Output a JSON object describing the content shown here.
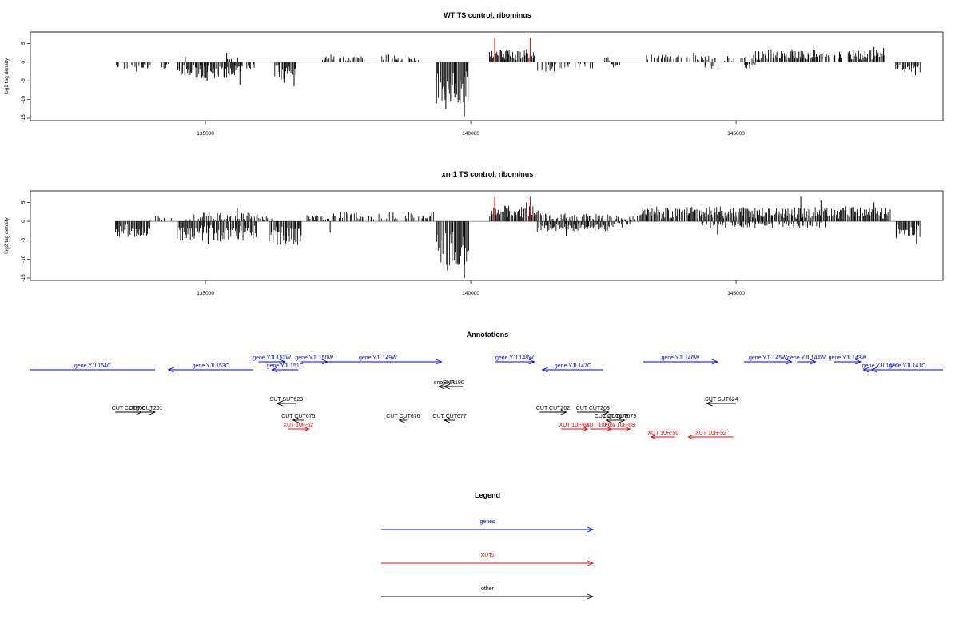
{
  "chart_data": [
    {
      "type": "bar",
      "title": "WT TS control, ribominus",
      "ylabel": "log2 tag density",
      "xlabel": "",
      "xlim": [
        131700,
        148900
      ],
      "ylim": [
        -15,
        7
      ],
      "y_ticks": [
        -15,
        -10,
        -5,
        0,
        5
      ],
      "x_ticks": [
        135000,
        140000,
        145000
      ],
      "x_tick_labels": [
        "135000",
        "140000",
        "145000"
      ],
      "highlight_color": "#ff0000",
      "highlight_positions": [
        140450,
        141120
      ],
      "highlight_heights": [
        6.5,
        6.5
      ],
      "segments": [
        {
          "start": 133300,
          "end": 133950,
          "level": -1.2,
          "seed": 1
        },
        {
          "start": 134100,
          "end": 134350,
          "level": -1.5,
          "seed": 2
        },
        {
          "start": 134450,
          "end": 135700,
          "level": -3.2,
          "seed": 3
        },
        {
          "start": 135750,
          "end": 135950,
          "level": -1.8,
          "seed": 4
        },
        {
          "start": 135400,
          "end": 135600,
          "level": 1.0,
          "seed": 5
        },
        {
          "start": 136300,
          "end": 136700,
          "level": -3.5,
          "seed": 6
        },
        {
          "start": 137200,
          "end": 137450,
          "level": 1.5,
          "seed": 7
        },
        {
          "start": 137500,
          "end": 138000,
          "level": 1.2,
          "seed": 8
        },
        {
          "start": 138300,
          "end": 138700,
          "level": 1.6,
          "seed": 9
        },
        {
          "start": 138800,
          "end": 139000,
          "level": 1.2,
          "seed": 10
        },
        {
          "start": 139350,
          "end": 139950,
          "level": -8.5,
          "seed": 11
        },
        {
          "start": 140350,
          "end": 141200,
          "level": 2.5,
          "seed": 12
        },
        {
          "start": 141250,
          "end": 141600,
          "level": -1.8,
          "seed": 13
        },
        {
          "start": 141650,
          "end": 141900,
          "level": -1.4,
          "seed": 14
        },
        {
          "start": 141950,
          "end": 142300,
          "level": -1.2,
          "seed": 15
        },
        {
          "start": 142450,
          "end": 142600,
          "level": 1.0,
          "seed": 16
        },
        {
          "start": 142650,
          "end": 142800,
          "level": -1.5,
          "seed": 17
        },
        {
          "start": 143300,
          "end": 144600,
          "level": 1.5,
          "seed": 18
        },
        {
          "start": 144400,
          "end": 144700,
          "level": -1.4,
          "seed": 19
        },
        {
          "start": 144750,
          "end": 145200,
          "level": 1.2,
          "seed": 20
        },
        {
          "start": 145100,
          "end": 145400,
          "level": -1.2,
          "seed": 21
        },
        {
          "start": 145300,
          "end": 146500,
          "level": 2.5,
          "seed": 22
        },
        {
          "start": 146500,
          "end": 147000,
          "level": 1.8,
          "seed": 23
        },
        {
          "start": 147100,
          "end": 147800,
          "level": 2.3,
          "seed": 24
        },
        {
          "start": 148000,
          "end": 148450,
          "level": -2.0,
          "seed": 25
        }
      ],
      "spikes": [
        {
          "x": 133700,
          "value": -2.5
        },
        {
          "x": 134620,
          "value": 1.5
        },
        {
          "x": 135030,
          "value": -5.0
        },
        {
          "x": 135400,
          "value": 2.5
        },
        {
          "x": 135650,
          "value": -6.0
        },
        {
          "x": 136670,
          "value": -6.5
        },
        {
          "x": 136480,
          "value": -5.5
        },
        {
          "x": 139530,
          "value": -12.5
        },
        {
          "x": 139700,
          "value": -9.5
        },
        {
          "x": 139800,
          "value": -11.0
        },
        {
          "x": 139880,
          "value": -14.5
        },
        {
          "x": 139620,
          "value": -10.5
        },
        {
          "x": 140700,
          "value": 3.0
        },
        {
          "x": 141050,
          "value": 3.5
        },
        {
          "x": 147600,
          "value": 4.0
        },
        {
          "x": 147780,
          "value": 3.8
        },
        {
          "x": 148380,
          "value": -3.5
        },
        {
          "x": 144200,
          "value": 2.5
        },
        {
          "x": 146950,
          "value": 2.8
        }
      ]
    },
    {
      "type": "bar",
      "title": "xrn1 TS control, ribominus",
      "ylabel": "log2 tag density",
      "xlabel": "",
      "xlim": [
        131700,
        148900
      ],
      "ylim": [
        -15,
        7
      ],
      "y_ticks": [
        -15,
        -10,
        -5,
        0,
        5
      ],
      "x_ticks": [
        135000,
        140000,
        145000
      ],
      "x_tick_labels": [
        "135000",
        "140000",
        "145000"
      ],
      "highlight_color": "#ff0000",
      "highlight_positions": [
        140450,
        141120
      ],
      "highlight_heights": [
        6.5,
        6.5
      ],
      "segments": [
        {
          "start": 133300,
          "end": 133950,
          "level": -3.0,
          "seed": 31
        },
        {
          "start": 133950,
          "end": 134350,
          "level": 1.0,
          "seed": 32
        },
        {
          "start": 134450,
          "end": 135950,
          "level": -3.8,
          "seed": 33
        },
        {
          "start": 134600,
          "end": 136000,
          "level": 1.8,
          "seed": 34
        },
        {
          "start": 136000,
          "end": 136300,
          "level": 1.2,
          "seed": 35
        },
        {
          "start": 136200,
          "end": 136800,
          "level": -4.5,
          "seed": 36
        },
        {
          "start": 136900,
          "end": 137400,
          "level": 1.2,
          "seed": 37
        },
        {
          "start": 137400,
          "end": 139300,
          "level": 1.8,
          "seed": 38
        },
        {
          "start": 139350,
          "end": 139950,
          "level": -9.0,
          "seed": 39
        },
        {
          "start": 140350,
          "end": 141250,
          "level": 3.0,
          "seed": 40
        },
        {
          "start": 141250,
          "end": 142600,
          "level": -2.0,
          "seed": 41
        },
        {
          "start": 141300,
          "end": 142600,
          "level": 1.5,
          "seed": 42
        },
        {
          "start": 142600,
          "end": 143200,
          "level": 1.2,
          "seed": 43
        },
        {
          "start": 142650,
          "end": 143000,
          "level": -1.2,
          "seed": 44
        },
        {
          "start": 143200,
          "end": 147900,
          "level": 2.8,
          "seed": 45
        },
        {
          "start": 144300,
          "end": 146700,
          "level": -1.3,
          "seed": 46
        },
        {
          "start": 148000,
          "end": 148450,
          "level": -3.2,
          "seed": 47
        }
      ],
      "spikes": [
        {
          "x": 133350,
          "value": -4.0
        },
        {
          "x": 135050,
          "value": -6.0
        },
        {
          "x": 135600,
          "value": 3.5
        },
        {
          "x": 136500,
          "value": -6.5
        },
        {
          "x": 136700,
          "value": -5.5
        },
        {
          "x": 139560,
          "value": -13.0
        },
        {
          "x": 139650,
          "value": -10.5
        },
        {
          "x": 139760,
          "value": -11.0
        },
        {
          "x": 139880,
          "value": -15.0
        },
        {
          "x": 140650,
          "value": 4.0
        },
        {
          "x": 141050,
          "value": 5.0
        },
        {
          "x": 141800,
          "value": -4.0
        },
        {
          "x": 146220,
          "value": 6.5
        },
        {
          "x": 146600,
          "value": 5.5
        },
        {
          "x": 147600,
          "value": 5.0
        },
        {
          "x": 148400,
          "value": -6.0
        },
        {
          "x": 144650,
          "value": -3.5
        },
        {
          "x": 137350,
          "value": -3.0
        }
      ]
    }
  ],
  "annotations": {
    "title": "Annotations",
    "xlim": [
      131700,
      148900
    ],
    "items": [
      {
        "label": "gene YJL154C",
        "color": "#0000ff",
        "start": 131700,
        "end": 134050,
        "strand": "-",
        "row": 1,
        "clip": true
      },
      {
        "label": "gene YJL153C",
        "color": "#0000ff",
        "start": 134300,
        "end": 135900,
        "strand": "-",
        "row": 1
      },
      {
        "label": "gene YJL152W",
        "color": "#0000ff",
        "start": 136000,
        "end": 136500,
        "strand": "+",
        "row": 0
      },
      {
        "label": "gene YJL151C",
        "color": "#0000ff",
        "start": 136250,
        "end": 136750,
        "strand": "-",
        "row": 1
      },
      {
        "label": "gene YJL150W",
        "color": "#0000ff",
        "start": 136800,
        "end": 137300,
        "strand": "+",
        "row": 0
      },
      {
        "label": "gene YJL149W",
        "color": "#0000ff",
        "start": 137050,
        "end": 139450,
        "strand": "+",
        "row": 0
      },
      {
        "label": "gene YJL148W",
        "color": "#0000ff",
        "start": 140450,
        "end": 141200,
        "strand": "+",
        "row": 0
      },
      {
        "label": "gene YJL147C",
        "color": "#0000ff",
        "start": 141350,
        "end": 142500,
        "strand": "-",
        "row": 1
      },
      {
        "label": "gene YJL146W",
        "color": "#0000ff",
        "start": 143250,
        "end": 144650,
        "strand": "+",
        "row": 0
      },
      {
        "label": "gene YJL145W",
        "color": "#0000ff",
        "start": 145150,
        "end": 146050,
        "strand": "+",
        "row": 0
      },
      {
        "label": "gene YJL144W",
        "color": "#0000ff",
        "start": 146150,
        "end": 146500,
        "strand": "+",
        "row": 0
      },
      {
        "label": "gene YJL143W",
        "color": "#0000ff",
        "start": 146850,
        "end": 147350,
        "strand": "+",
        "row": 0
      },
      {
        "label": "gene YJL142C",
        "color": "#0000ff",
        "start": 147400,
        "end": 148050,
        "strand": "-",
        "row": 1
      },
      {
        "label": "gene YJL141C",
        "color": "#0000ff",
        "start": 147550,
        "end": 148900,
        "strand": "-",
        "row": 1,
        "clip": true
      },
      {
        "label": "snoRNA",
        "color": "#000000",
        "start": 139400,
        "end": 139600,
        "strand": "-",
        "row": 2
      },
      {
        "label": "SNR190",
        "color": "#000000",
        "start": 139500,
        "end": 139850,
        "strand": "-",
        "row": 2
      },
      {
        "label": "SUT SUT623",
        "color": "#000000",
        "start": 136350,
        "end": 136700,
        "strand": "-",
        "row": 3
      },
      {
        "label": "SUT SUT624",
        "color": "#000000",
        "start": 144450,
        "end": 145000,
        "strand": "-",
        "row": 3
      },
      {
        "label": "CUT CUT200",
        "color": "#000000",
        "start": 133300,
        "end": 133800,
        "strand": "+",
        "row": 4
      },
      {
        "label": "CUT CUT201",
        "color": "#000000",
        "start": 133700,
        "end": 134050,
        "strand": "+",
        "row": 4
      },
      {
        "label": "CUT CUT202",
        "color": "#000000",
        "start": 141300,
        "end": 141800,
        "strand": "+",
        "row": 4
      },
      {
        "label": "CUT CUT203",
        "color": "#000000",
        "start": 142000,
        "end": 142600,
        "strand": "+",
        "row": 4
      },
      {
        "label": "CUT CUT675",
        "color": "#000000",
        "start": 136650,
        "end": 136850,
        "strand": "-",
        "row": 5
      },
      {
        "label": "CUT CUT676",
        "color": "#000000",
        "start": 138650,
        "end": 138800,
        "strand": "-",
        "row": 5
      },
      {
        "label": "CUT CUT677",
        "color": "#000000",
        "start": 139500,
        "end": 139700,
        "strand": "-",
        "row": 5
      },
      {
        "label": "CUT CUT678",
        "color": "#000000",
        "start": 142550,
        "end": 142750,
        "strand": "-",
        "row": 5
      },
      {
        "label": "CUT CUT679",
        "color": "#000000",
        "start": 142700,
        "end": 142900,
        "strand": "+",
        "row": 5
      },
      {
        "label": "XUT 10F-62",
        "color": "#ff0000",
        "start": 136550,
        "end": 136950,
        "strand": "+",
        "row": 6
      },
      {
        "label": "XUT 10F-65",
        "color": "#ff0000",
        "start": 141700,
        "end": 142200,
        "strand": "+",
        "row": 6
      },
      {
        "label": "XUT 10F-67",
        "color": "#ff0000",
        "start": 142250,
        "end": 142650,
        "strand": "+",
        "row": 6
      },
      {
        "label": "XUT 10F-68",
        "color": "#ff0000",
        "start": 142600,
        "end": 143000,
        "strand": "+",
        "row": 6
      },
      {
        "label": "XUT 10R-50",
        "color": "#ff0000",
        "start": 143400,
        "end": 143850,
        "strand": "-",
        "row": 7
      },
      {
        "label": "XUT 10R-52",
        "color": "#ff0000",
        "start": 144100,
        "end": 144950,
        "strand": "-",
        "row": 7
      }
    ]
  },
  "legend": {
    "title": "Legend",
    "entries": [
      {
        "label": "genes",
        "color": "#0000ff"
      },
      {
        "label": "XUTs",
        "color": "#ff0000"
      },
      {
        "label": "other",
        "color": "#000000"
      }
    ]
  }
}
